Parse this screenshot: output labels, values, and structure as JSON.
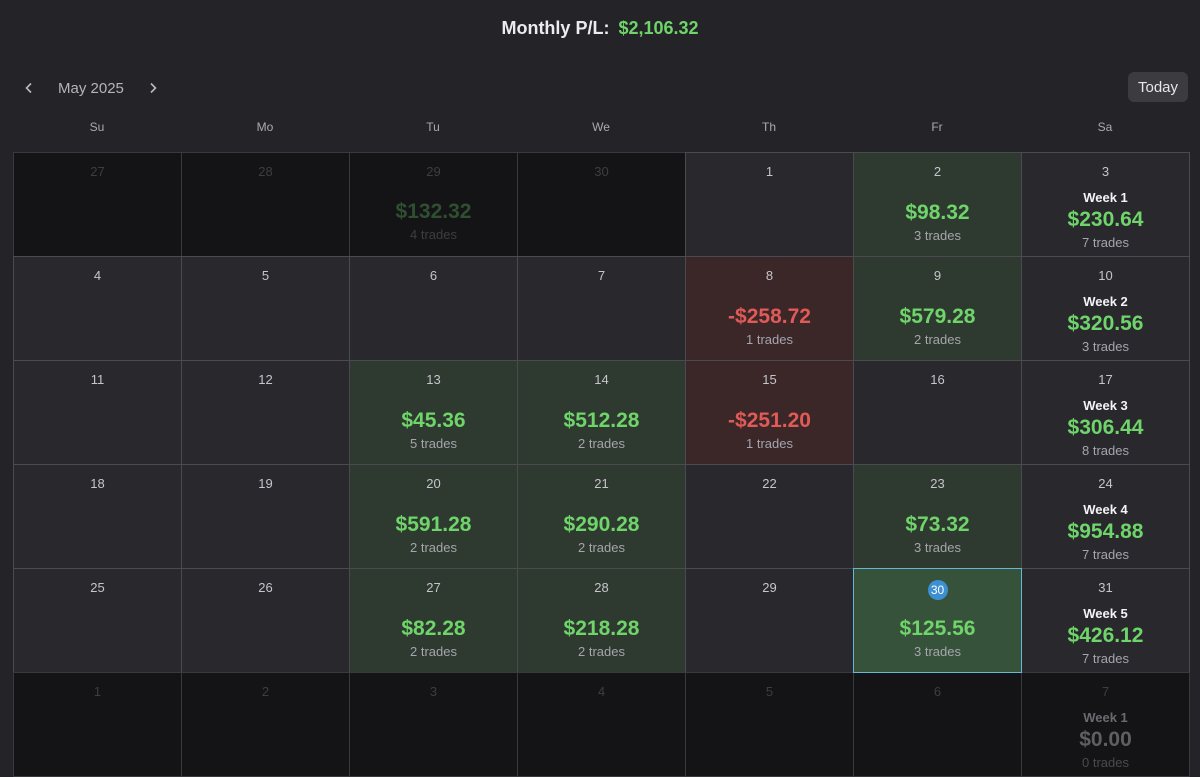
{
  "header": {
    "label": "Monthly P/L:",
    "value": "$2,106.32"
  },
  "nav": {
    "month": "May 2025",
    "today_label": "Today"
  },
  "weekdays": [
    "Su",
    "Mo",
    "Tu",
    "We",
    "Th",
    "Fr",
    "Sa"
  ],
  "colors": {
    "profit": "#6fd46a",
    "loss": "#e05a58",
    "today_ring": "#67b7d6",
    "today_badge": "#3c8fd1"
  },
  "weeks": [
    [
      {
        "day": "27",
        "out": true
      },
      {
        "day": "28",
        "out": true
      },
      {
        "day": "29",
        "out": true,
        "pl": "$132.32",
        "trades": "4 trades"
      },
      {
        "day": "30",
        "out": true
      },
      {
        "day": "1"
      },
      {
        "day": "2",
        "type": "pos",
        "pl": "$98.32",
        "trades": "3 trades"
      },
      {
        "day": "3",
        "week": {
          "label": "Week 1",
          "pl": "$230.64",
          "trades": "7 trades"
        }
      }
    ],
    [
      {
        "day": "4"
      },
      {
        "day": "5"
      },
      {
        "day": "6"
      },
      {
        "day": "7"
      },
      {
        "day": "8",
        "type": "neg",
        "pl": "-$258.72",
        "trades": "1 trades"
      },
      {
        "day": "9",
        "type": "pos",
        "pl": "$579.28",
        "trades": "2 trades"
      },
      {
        "day": "10",
        "week": {
          "label": "Week 2",
          "pl": "$320.56",
          "trades": "3 trades"
        }
      }
    ],
    [
      {
        "day": "11"
      },
      {
        "day": "12"
      },
      {
        "day": "13",
        "type": "pos",
        "pl": "$45.36",
        "trades": "5 trades"
      },
      {
        "day": "14",
        "type": "pos",
        "pl": "$512.28",
        "trades": "2 trades"
      },
      {
        "day": "15",
        "type": "neg",
        "pl": "-$251.20",
        "trades": "1 trades"
      },
      {
        "day": "16"
      },
      {
        "day": "17",
        "week": {
          "label": "Week 3",
          "pl": "$306.44",
          "trades": "8 trades"
        }
      }
    ],
    [
      {
        "day": "18"
      },
      {
        "day": "19"
      },
      {
        "day": "20",
        "type": "pos",
        "pl": "$591.28",
        "trades": "2 trades"
      },
      {
        "day": "21",
        "type": "pos",
        "pl": "$290.28",
        "trades": "2 trades"
      },
      {
        "day": "22"
      },
      {
        "day": "23",
        "type": "pos",
        "pl": "$73.32",
        "trades": "3 trades"
      },
      {
        "day": "24",
        "week": {
          "label": "Week 4",
          "pl": "$954.88",
          "trades": "7 trades"
        }
      }
    ],
    [
      {
        "day": "25"
      },
      {
        "day": "26"
      },
      {
        "day": "27",
        "type": "pos",
        "pl": "$82.28",
        "trades": "2 trades"
      },
      {
        "day": "28",
        "type": "pos",
        "pl": "$218.28",
        "trades": "2 trades"
      },
      {
        "day": "29"
      },
      {
        "day": "30",
        "type": "today",
        "pl": "$125.56",
        "trades": "3 trades"
      },
      {
        "day": "31",
        "week": {
          "label": "Week 5",
          "pl": "$426.12",
          "trades": "7 trades"
        }
      }
    ],
    [
      {
        "day": "1",
        "out": true
      },
      {
        "day": "2",
        "out": true
      },
      {
        "day": "3",
        "out": true
      },
      {
        "day": "4",
        "out": true
      },
      {
        "day": "5",
        "out": true
      },
      {
        "day": "6",
        "out": true
      },
      {
        "day": "7",
        "out": true,
        "week": {
          "label": "Week 1",
          "pl": "$0.00",
          "trades": "0 trades"
        }
      }
    ]
  ]
}
